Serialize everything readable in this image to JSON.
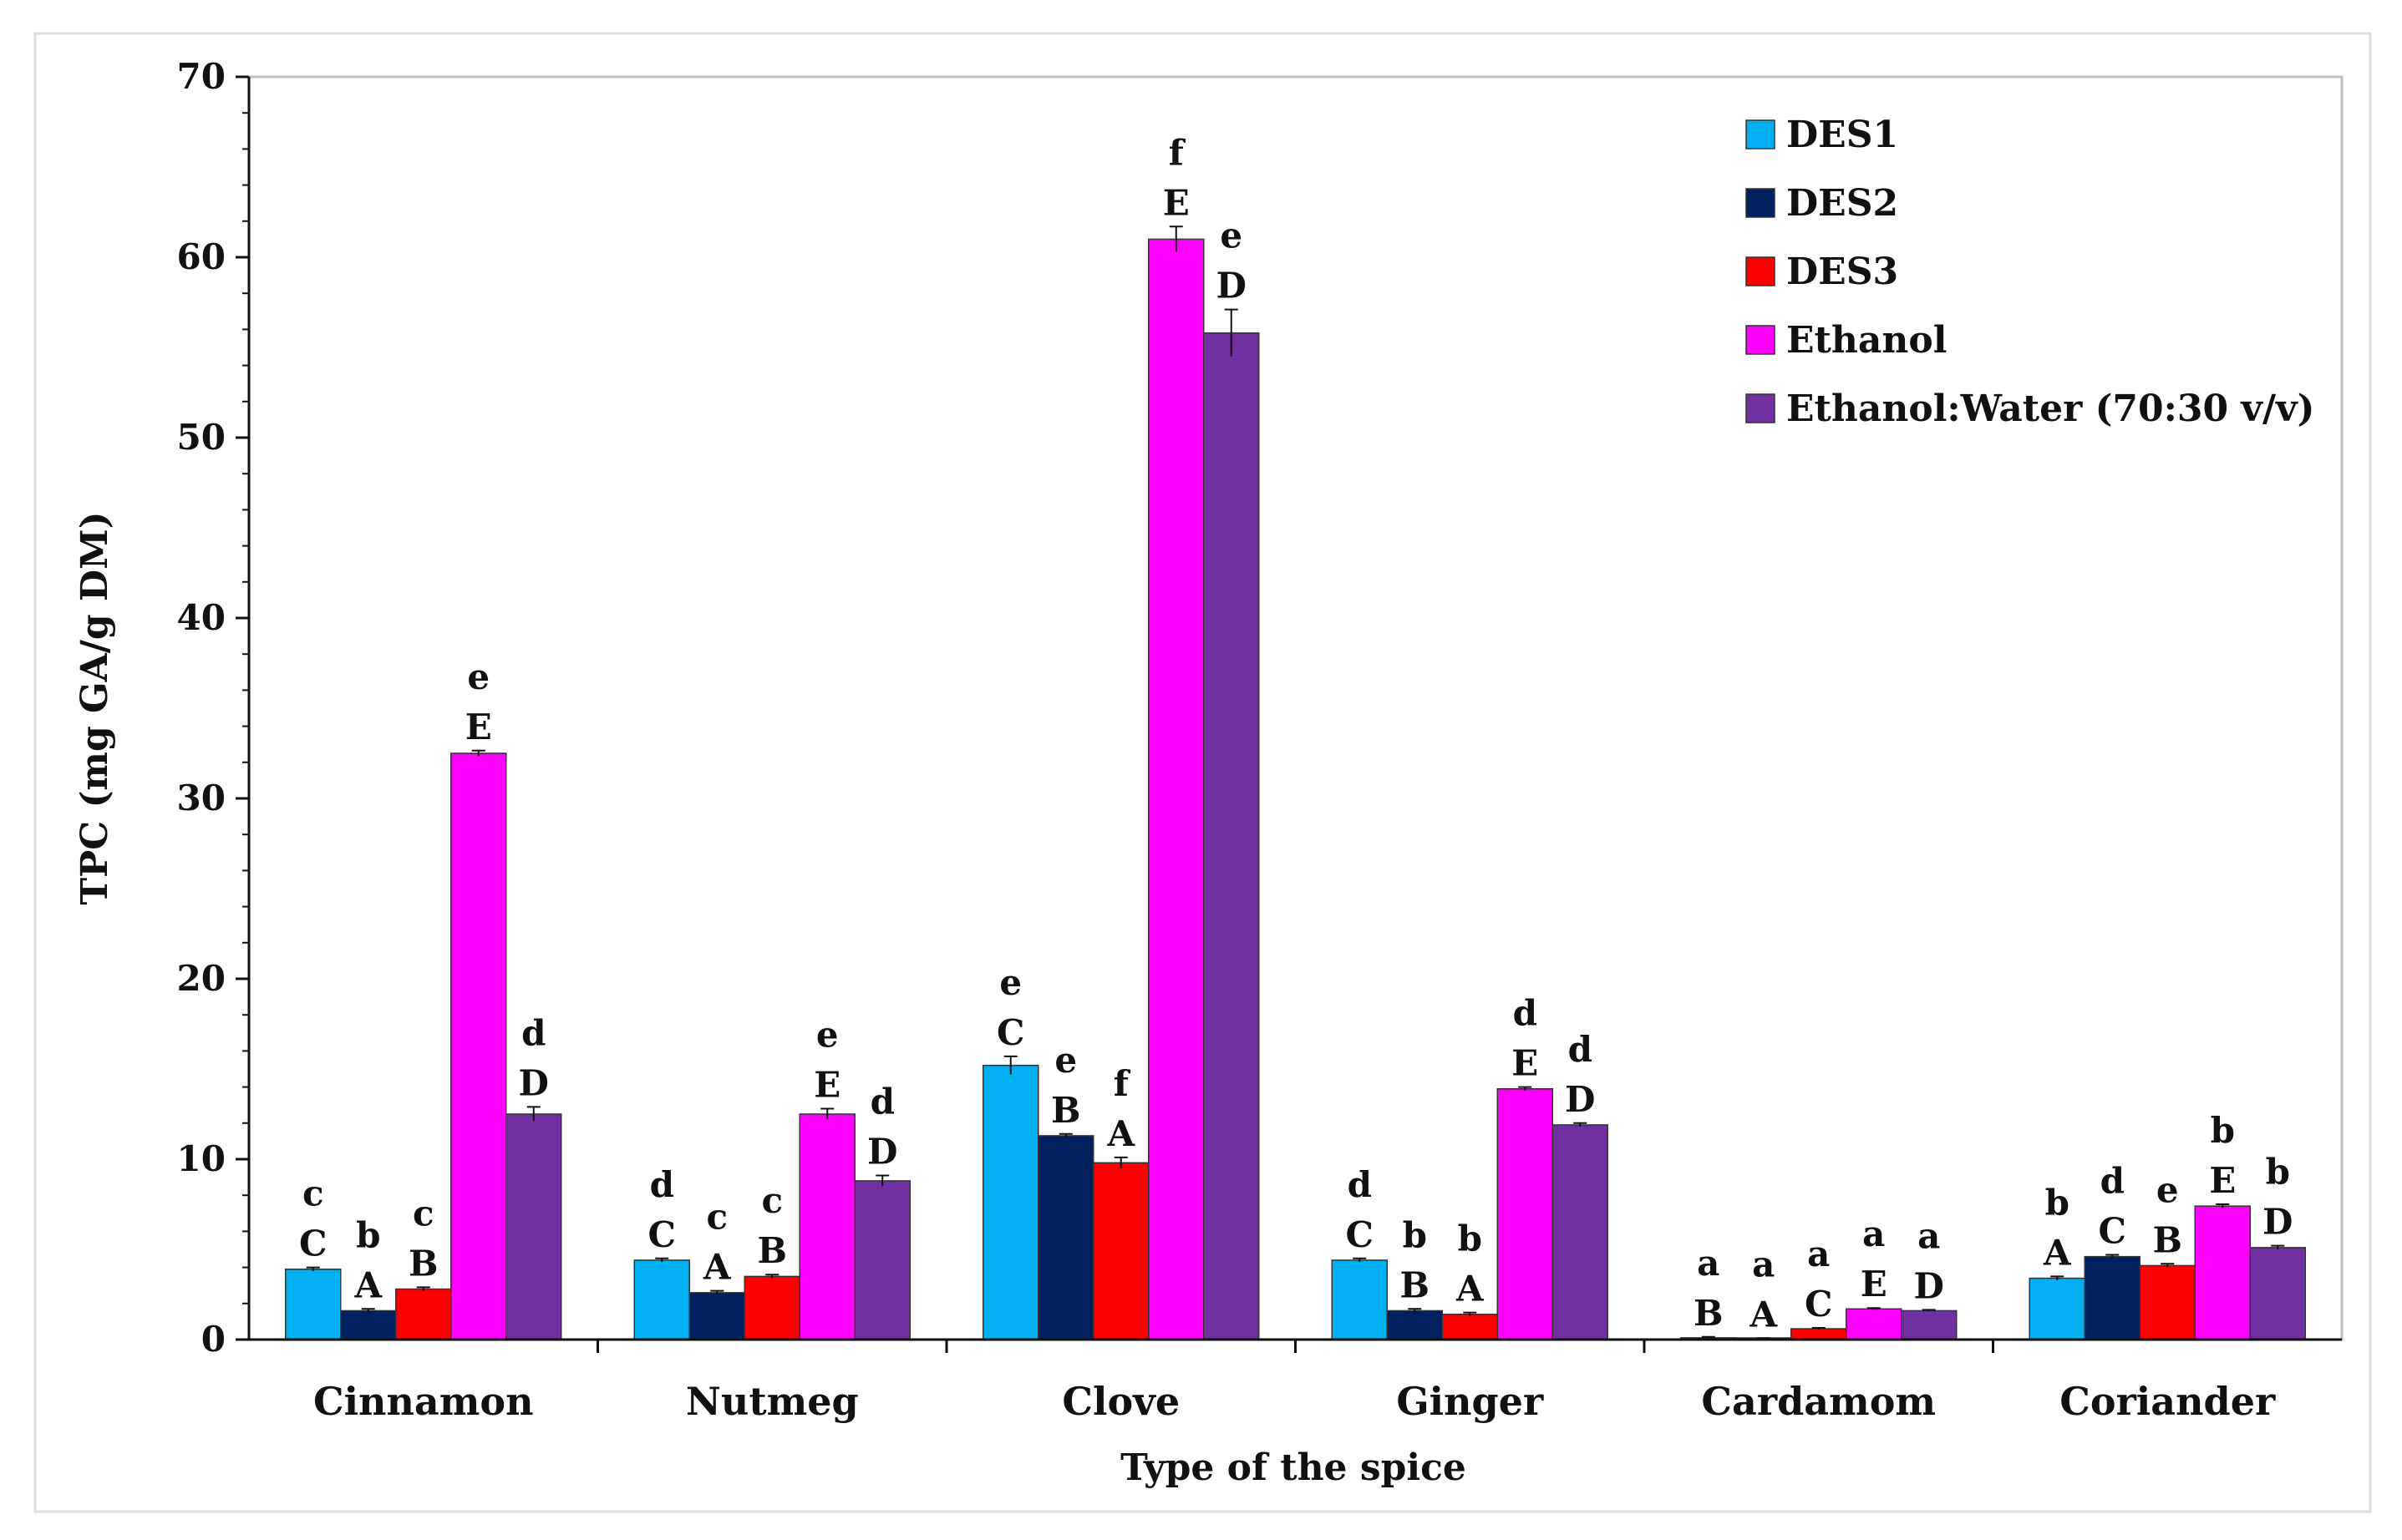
{
  "chart_data": {
    "type": "bar",
    "xlabel": "Type of the spice",
    "ylabel": "TPC  (mg GA/g DM)",
    "ylim": [
      0,
      70
    ],
    "yticks": [
      0,
      10,
      20,
      30,
      40,
      50,
      60,
      70
    ],
    "grid": false,
    "legend_position": "top-right",
    "categories": [
      "Cinnamon",
      "Nutmeg",
      "Clove",
      "Ginger",
      "Cardamom",
      "Coriander"
    ],
    "series": [
      {
        "name": "DES1",
        "color": "#00B0F0",
        "values": [
          3.9,
          4.4,
          15.2,
          4.4,
          0.1,
          3.4
        ],
        "errors": [
          0.1,
          0.1,
          0.5,
          0.1,
          0.05,
          0.1
        ],
        "upper_labels": [
          "c",
          "d",
          "e",
          "d",
          "a",
          "b"
        ],
        "lower_labels": [
          "C",
          "C",
          "C",
          "C",
          "B",
          "A"
        ]
      },
      {
        "name": "DES2",
        "color": "#002060",
        "values": [
          1.6,
          2.6,
          11.3,
          1.6,
          0.05,
          4.6
        ],
        "errors": [
          0.1,
          0.1,
          0.1,
          0.1,
          0.03,
          0.1
        ],
        "upper_labels": [
          "b",
          "c",
          "e",
          "b",
          "a",
          "d"
        ],
        "lower_labels": [
          "A",
          "A",
          "B",
          "B",
          "A",
          "C"
        ]
      },
      {
        "name": "DES3",
        "color": "#FF0000",
        "values": [
          2.8,
          3.5,
          9.8,
          1.4,
          0.6,
          4.1
        ],
        "errors": [
          0.1,
          0.1,
          0.3,
          0.1,
          0.05,
          0.1
        ],
        "upper_labels": [
          "c",
          "c",
          "f",
          "b",
          "a",
          "e"
        ],
        "lower_labels": [
          "B",
          "B",
          "A",
          "A",
          "C",
          "B"
        ]
      },
      {
        "name": "Ethanol",
        "color": "#FF00FF",
        "values": [
          32.5,
          12.5,
          61.0,
          13.9,
          1.7,
          7.4
        ],
        "errors": [
          0.15,
          0.3,
          0.7,
          0.1,
          0.05,
          0.1
        ],
        "upper_labels": [
          "e",
          "e",
          "f",
          "d",
          "a",
          "b"
        ],
        "lower_labels": [
          "E",
          "E",
          "E",
          "E",
          "E",
          "E"
        ]
      },
      {
        "name": "Ethanol:Water (70:30 v/v)",
        "color": "#7030A0",
        "values": [
          12.5,
          8.8,
          55.8,
          11.9,
          1.6,
          5.1
        ],
        "errors": [
          0.4,
          0.3,
          1.3,
          0.1,
          0.05,
          0.1
        ],
        "upper_labels": [
          "d",
          "d",
          "e",
          "d",
          "a",
          "b"
        ],
        "lower_labels": [
          "D",
          "D",
          "D",
          "D",
          "D",
          "D"
        ]
      }
    ]
  }
}
